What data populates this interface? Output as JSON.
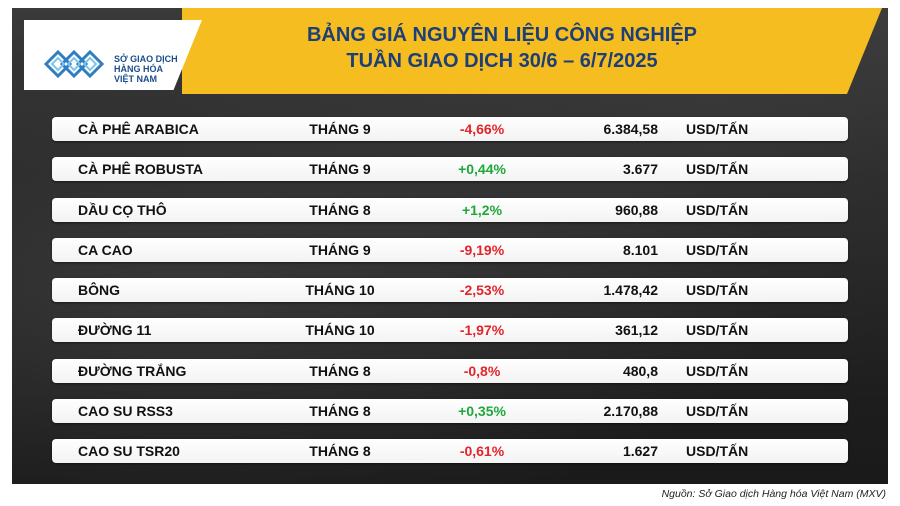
{
  "logo": {
    "line1": "SỞ GIAO DỊCH",
    "line2": "HÀNG HÓA",
    "line3": "VIỆT NAM"
  },
  "title": {
    "line1": "BẢNG GIÁ NGUYÊN LIỆU CÔNG NGHIỆP",
    "line2": "TUẦN GIAO DỊCH 30/6 – 6/7/2025"
  },
  "colors": {
    "negative": "#e3242b",
    "positive": "#1ea83a",
    "header": "#f5bd1f",
    "title": "#1d3f78"
  },
  "rows": [
    {
      "name": "CÀ PHÊ ARABICA",
      "month": "THÁNG 9",
      "change": "-4,66%",
      "direction": "neg",
      "price": "6.384,58",
      "unit": "USD/TẤN"
    },
    {
      "name": "CÀ PHÊ ROBUSTA",
      "month": "THÁNG 9",
      "change": "+0,44%",
      "direction": "pos",
      "price": "3.677",
      "unit": "USD/TẤN"
    },
    {
      "name": "DẦU CỌ THÔ",
      "month": "THÁNG 8",
      "change": "+1,2%",
      "direction": "pos",
      "price": "960,88",
      "unit": "USD/TẤN"
    },
    {
      "name": "CA CAO",
      "month": "THÁNG 9",
      "change": "-9,19%",
      "direction": "neg",
      "price": "8.101",
      "unit": "USD/TẤN"
    },
    {
      "name": "BÔNG",
      "month": "THÁNG 10",
      "change": "-2,53%",
      "direction": "neg",
      "price": "1.478,42",
      "unit": "USD/TẤN"
    },
    {
      "name": "ĐƯỜNG 11",
      "month": "THÁNG 10",
      "change": "-1,97%",
      "direction": "neg",
      "price": "361,12",
      "unit": "USD/TẤN"
    },
    {
      "name": "ĐƯỜNG TRẮNG",
      "month": "THÁNG 8",
      "change": "-0,8%",
      "direction": "neg",
      "price": "480,8",
      "unit": "USD/TẤN"
    },
    {
      "name": "CAO SU RSS3",
      "month": "THÁNG 8",
      "change": "+0,35%",
      "direction": "pos",
      "price": "2.170,88",
      "unit": "USD/TẤN"
    },
    {
      "name": "CAO SU TSR20",
      "month": "THÁNG 8",
      "change": "-0,61%",
      "direction": "neg",
      "price": "1.627",
      "unit": "USD/TẤN"
    }
  ],
  "source": "Nguồn: Sở Giao dịch Hàng hóa Việt Nam (MXV)"
}
